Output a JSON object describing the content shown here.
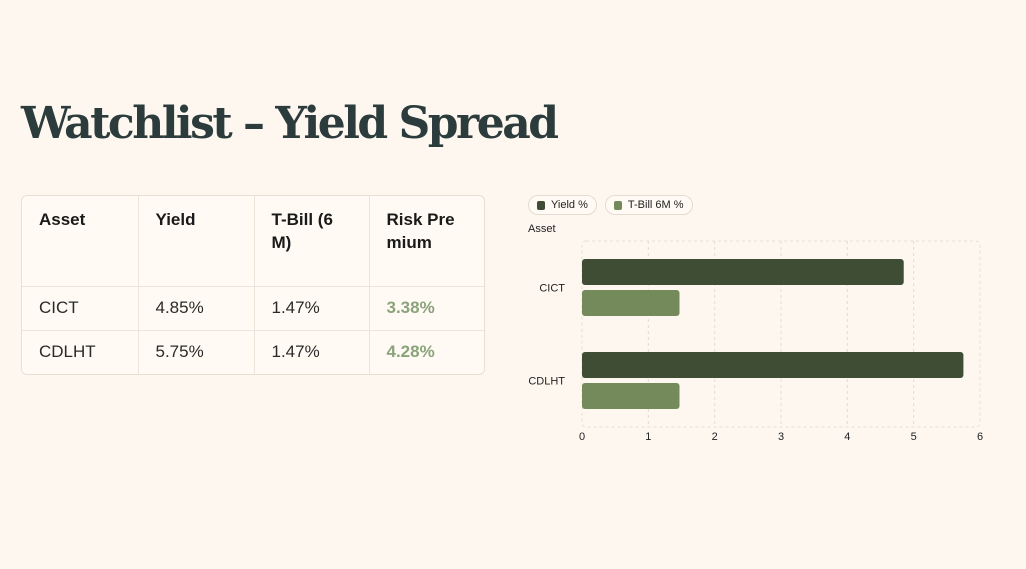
{
  "title": "Watchlist – Yield Spread",
  "table": {
    "headers": [
      "Asset",
      "Yield",
      "T-Bill (6M)",
      "Risk Premium"
    ],
    "rows": [
      [
        "CICT",
        "4.85%",
        "1.47%",
        "3.38%"
      ],
      [
        "CDLHT",
        "5.75%",
        "1.47%",
        "4.28%"
      ]
    ]
  },
  "colors": {
    "yield": "#3f4d35",
    "tbill": "#748a5a",
    "premium": "#8aa37a"
  },
  "chart_data": {
    "type": "bar",
    "orientation": "horizontal",
    "ylabel": "Asset",
    "categories": [
      "CICT",
      "CDLHT"
    ],
    "series": [
      {
        "name": "Yield %",
        "values": [
          4.85,
          5.75
        ]
      },
      {
        "name": "T-Bill 6M %",
        "values": [
          1.47,
          1.47
        ]
      }
    ],
    "xlim": [
      0,
      6
    ],
    "xticks": [
      "0",
      "1",
      "2",
      "3",
      "4",
      "5",
      "6"
    ],
    "grid": true,
    "legend": "top-left"
  }
}
